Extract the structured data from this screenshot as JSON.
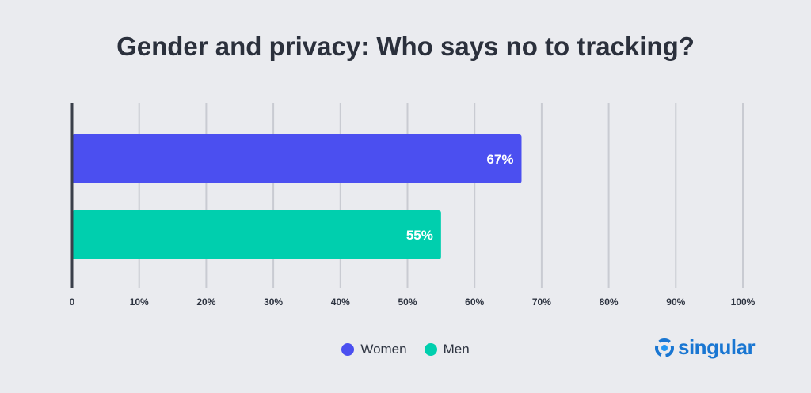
{
  "title": "Gender and privacy: Who says no to tracking?",
  "chart_data": {
    "type": "bar",
    "orientation": "horizontal",
    "categories": [
      "Women",
      "Men"
    ],
    "values": [
      67,
      55
    ],
    "value_labels": [
      "67%",
      "55%"
    ],
    "colors": [
      "#4b4ff0",
      "#00cfae"
    ],
    "title": "Gender and privacy: Who says no to tracking?",
    "xlabel": "",
    "ylabel": "",
    "xlim": [
      0,
      100
    ],
    "x_ticks": [
      0,
      10,
      20,
      30,
      40,
      50,
      60,
      70,
      80,
      90,
      100
    ],
    "x_tick_labels": [
      "0",
      "10%",
      "20%",
      "30%",
      "40%",
      "50%",
      "60%",
      "70%",
      "80%",
      "90%",
      "100%"
    ],
    "grid": true,
    "legend": {
      "placement": "bottom-center",
      "entries": [
        {
          "name": "Women",
          "color": "#4b4ff0"
        },
        {
          "name": "Men",
          "color": "#00cfae"
        }
      ]
    }
  },
  "branding": {
    "logo_text": "singular",
    "logo_icon": "singular-logo-icon",
    "logo_color": "#1976d2"
  }
}
